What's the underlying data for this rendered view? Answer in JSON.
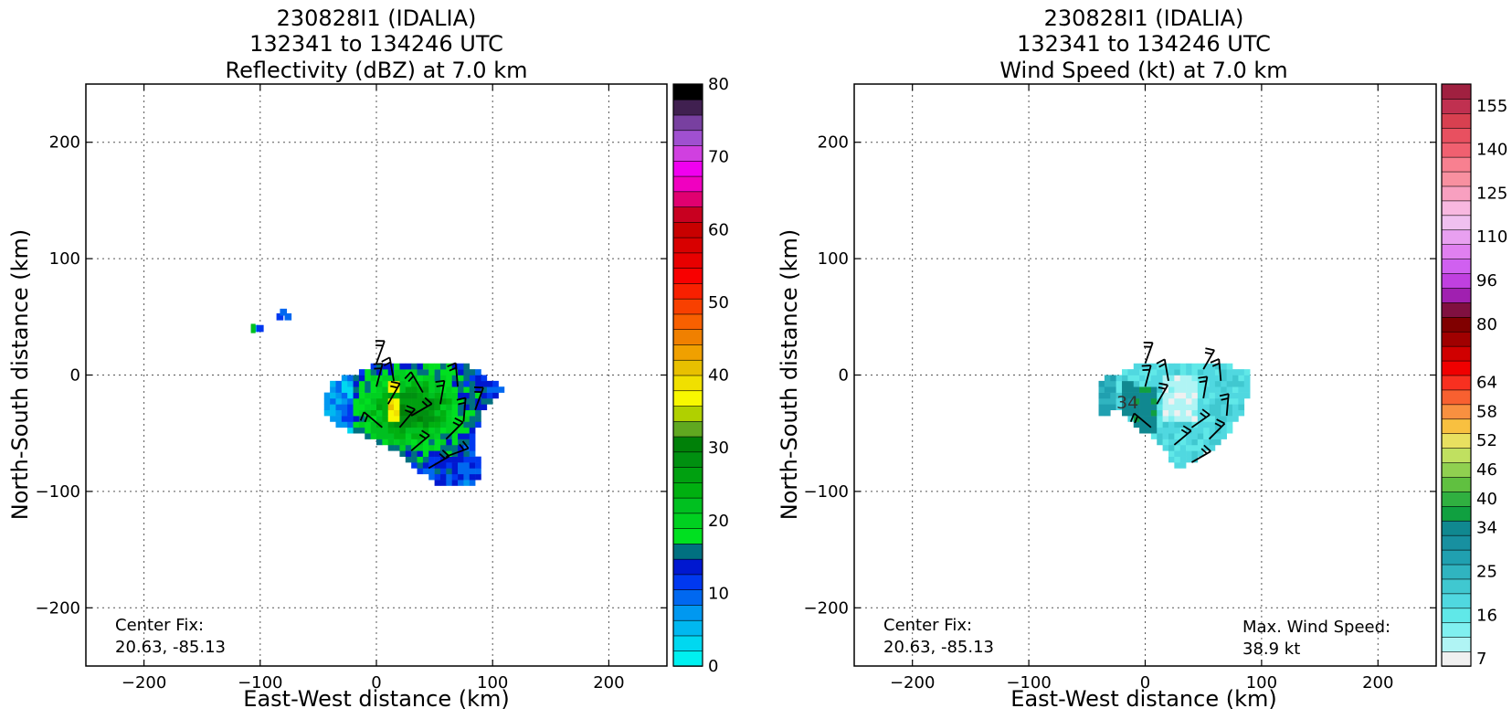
{
  "chart_data": [
    {
      "type": "heatmap",
      "title_lines": [
        "230828I1 (IDALIA)",
        "132341 to 134246 UTC",
        "Reflectivity (dBZ) at 7.0 km"
      ],
      "xlabel": "East-West distance (km)",
      "ylabel": "North-South distance (km)",
      "xlim": [
        -250,
        250
      ],
      "ylim": [
        -250,
        250
      ],
      "xticks": [
        -200,
        -100,
        0,
        100,
        200
      ],
      "yticks": [
        -200,
        -100,
        0,
        100,
        200
      ],
      "grid": true,
      "colorbar": {
        "min": 0,
        "max": 80,
        "tick_values": [
          0,
          10,
          20,
          30,
          40,
          50,
          60,
          70,
          80
        ],
        "colors": [
          "#00f0f0",
          "#00d8f0",
          "#00b8f0",
          "#0098f0",
          "#0068f0",
          "#0038f0",
          "#0018d0",
          "#007080",
          "#00e020",
          "#00d020",
          "#00c020",
          "#00b010",
          "#00a010",
          "#009010",
          "#008008",
          "#60a820",
          "#b0d000",
          "#f8f800",
          "#f0e000",
          "#e8c000",
          "#f0a000",
          "#f08000",
          "#f86000",
          "#f84000",
          "#f82000",
          "#f80000",
          "#e80000",
          "#d80000",
          "#c80000",
          "#c80020",
          "#e00070",
          "#f000c0",
          "#f000f0",
          "#d040e0",
          "#a050d0",
          "#7840a0",
          "#402050",
          "#000000"
        ]
      },
      "annotations": {
        "center_fix_label": "Center Fix:",
        "center_fix_value": "20.63, -85.13"
      }
    },
    {
      "type": "heatmap",
      "title_lines": [
        "230828I1 (IDALIA)",
        "132341 to 134246 UTC",
        "Wind Speed (kt) at 7.0 km"
      ],
      "xlabel": "East-West distance (km)",
      "ylabel": "North-South distance (km)",
      "xlim": [
        -250,
        250
      ],
      "ylim": [
        -250,
        250
      ],
      "xticks": [
        -200,
        -100,
        0,
        100,
        200
      ],
      "yticks": [
        -200,
        -100,
        0,
        100,
        200
      ],
      "grid": true,
      "colorbar": {
        "levels": [
          7,
          10,
          13,
          16,
          19,
          22,
          25,
          28,
          31,
          34,
          37,
          40,
          43,
          46,
          49,
          52,
          55,
          58,
          61,
          64,
          68,
          72,
          76,
          80,
          86,
          91,
          96,
          101,
          106,
          110,
          115,
          120,
          125,
          130,
          135,
          140,
          145,
          150,
          155,
          160
        ],
        "tick_labels": [
          "7",
          "16",
          "25",
          "34",
          "40",
          "46",
          "52",
          "58",
          "64",
          "80",
          "96",
          "110",
          "125",
          "140",
          "155"
        ],
        "tick_level_index": [
          0,
          3,
          6,
          9,
          11,
          13,
          15,
          17,
          19,
          23,
          26,
          29,
          32,
          35,
          38
        ],
        "colors": [
          "#f0f0f0",
          "#b0f4f4",
          "#80f0f0",
          "#60e8e8",
          "#50d8e0",
          "#40c8d0",
          "#30b4c0",
          "#20a0b0",
          "#1890a0",
          "#108890",
          "#10a040",
          "#30b040",
          "#60c040",
          "#90d050",
          "#c0e060",
          "#e8e060",
          "#f8c040",
          "#f89040",
          "#f86030",
          "#f83020",
          "#f00000",
          "#d00000",
          "#a00000",
          "#800000",
          "#801040",
          "#a020b0",
          "#c040e0",
          "#d060f0",
          "#e080f0",
          "#e8a0f0",
          "#f0c0f0",
          "#f8b8e0",
          "#f8a0c0",
          "#f890a0",
          "#f88090",
          "#f06070",
          "#e85060",
          "#d84050",
          "#c03050",
          "#a02040"
        ]
      },
      "annotations": {
        "center_fix_label": "Center Fix:",
        "center_fix_value": "20.63, -85.13",
        "max_wind_label": "Max. Wind Speed:",
        "max_wind_value": "38.9 kt",
        "contour_label": "34"
      }
    }
  ]
}
